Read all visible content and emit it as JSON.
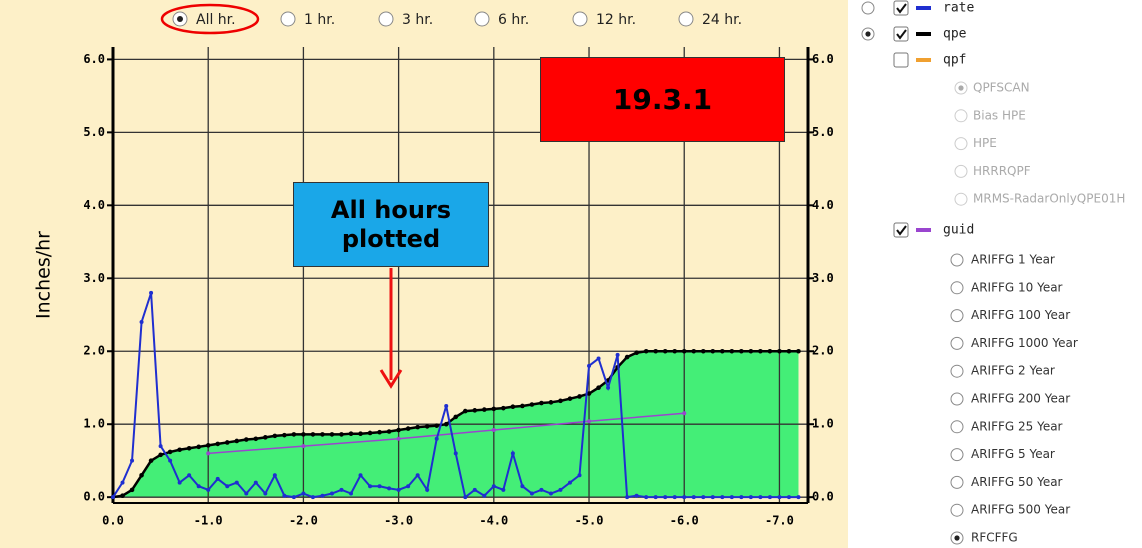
{
  "radio_options": [
    {
      "label": "All hr.",
      "selected": true
    },
    {
      "label": "1 hr.",
      "selected": false
    },
    {
      "label": "3 hr.",
      "selected": false
    },
    {
      "label": "6 hr.",
      "selected": false
    },
    {
      "label": "12 hr.",
      "selected": false
    },
    {
      "label": "24 hr.",
      "selected": false
    }
  ],
  "chart_data": {
    "type": "line",
    "ylabel": "Inches/hr",
    "background": "#fdf0c8",
    "grid": true,
    "xlim": [
      0,
      -7.3
    ],
    "ylim": [
      -0.08,
      6.17
    ],
    "y2lim": [
      -0.08,
      6.17
    ],
    "xticks": [
      {
        "value": 0,
        "label": "0.0"
      },
      {
        "value": -1,
        "label": "-1.0"
      },
      {
        "value": -2,
        "label": "-2.0"
      },
      {
        "value": -3,
        "label": "-3.0"
      },
      {
        "value": -4,
        "label": "-4.0"
      },
      {
        "value": -5,
        "label": "-5.0"
      },
      {
        "value": -6,
        "label": "-6.0"
      },
      {
        "value": -7,
        "label": "-7.0"
      }
    ],
    "yticks": [
      {
        "value": 0,
        "label": "0.0"
      },
      {
        "value": 1,
        "label": "1.0"
      },
      {
        "value": 2,
        "label": "2.0"
      },
      {
        "value": 3,
        "label": "3.0"
      },
      {
        "value": 4,
        "label": "4.0"
      },
      {
        "value": 5,
        "label": "5.0"
      },
      {
        "value": 6,
        "label": "6.0"
      }
    ],
    "y2ticks": [
      {
        "value": 0,
        "label": "0.0"
      },
      {
        "value": 1,
        "label": "1.0"
      },
      {
        "value": 2,
        "label": "2.0"
      },
      {
        "value": 3,
        "label": "3.0"
      },
      {
        "value": 4,
        "label": "4.0"
      },
      {
        "value": 5,
        "label": "5.0"
      },
      {
        "value": 6,
        "label": "6.0"
      }
    ],
    "series": [
      {
        "name": "qpe",
        "color": "#000000",
        "fill": "#44ee77",
        "checked": true,
        "radio_selected": true,
        "x": [
          0,
          -0.1,
          -0.2,
          -0.3,
          -0.4,
          -0.5,
          -0.6,
          -0.7,
          -0.8,
          -0.9,
          -1,
          -1.1,
          -1.2,
          -1.3,
          -1.4,
          -1.5,
          -1.6,
          -1.7,
          -1.8,
          -1.9,
          -2,
          -2.1,
          -2.2,
          -2.3,
          -2.4,
          -2.5,
          -2.6,
          -2.7,
          -2.8,
          -2.9,
          -3,
          -3.1,
          -3.2,
          -3.3,
          -3.4,
          -3.5,
          -3.6,
          -3.7,
          -3.8,
          -3.9,
          -4,
          -4.1,
          -4.2,
          -4.3,
          -4.4,
          -4.5,
          -4.6,
          -4.7,
          -4.8,
          -4.9,
          -5,
          -5.1,
          -5.2,
          -5.3,
          -5.4,
          -5.5,
          -5.6,
          -5.7,
          -5.8,
          -5.9,
          -6,
          -6.1,
          -6.2,
          -6.3,
          -6.4,
          -6.5,
          -6.6,
          -6.7,
          -6.8,
          -6.9,
          -7,
          -7.1,
          -7.2
        ],
        "values": [
          0,
          0.02,
          0.1,
          0.3,
          0.5,
          0.58,
          0.62,
          0.65,
          0.67,
          0.69,
          0.71,
          0.73,
          0.75,
          0.77,
          0.79,
          0.8,
          0.82,
          0.84,
          0.85,
          0.86,
          0.86,
          0.86,
          0.86,
          0.86,
          0.86,
          0.87,
          0.87,
          0.88,
          0.89,
          0.9,
          0.92,
          0.94,
          0.96,
          0.97,
          0.98,
          1.0,
          1.1,
          1.18,
          1.19,
          1.2,
          1.21,
          1.22,
          1.24,
          1.25,
          1.27,
          1.29,
          1.3,
          1.32,
          1.35,
          1.38,
          1.42,
          1.5,
          1.6,
          1.78,
          1.92,
          1.98,
          2,
          2,
          2,
          2,
          2,
          2,
          2,
          2,
          2,
          2,
          2,
          2,
          2,
          2,
          2,
          2,
          2
        ]
      },
      {
        "name": "rate",
        "color": "#1f2fd0",
        "checked": true,
        "radio_selected": false,
        "x": [
          0,
          -0.1,
          -0.2,
          -0.3,
          -0.4,
          -0.5,
          -0.6,
          -0.7,
          -0.8,
          -0.9,
          -1,
          -1.1,
          -1.2,
          -1.3,
          -1.4,
          -1.5,
          -1.6,
          -1.7,
          -1.8,
          -1.9,
          -2,
          -2.1,
          -2.2,
          -2.3,
          -2.4,
          -2.5,
          -2.6,
          -2.7,
          -2.8,
          -2.9,
          -3,
          -3.1,
          -3.2,
          -3.3,
          -3.4,
          -3.5,
          -3.6,
          -3.7,
          -3.8,
          -3.9,
          -4,
          -4.1,
          -4.2,
          -4.3,
          -4.4,
          -4.5,
          -4.6,
          -4.7,
          -4.8,
          -4.9,
          -5,
          -5.1,
          -5.2,
          -5.3,
          -5.4,
          -5.5,
          -5.6,
          -5.7,
          -5.8,
          -5.9,
          -6,
          -6.1,
          -6.2,
          -6.3,
          -6.4,
          -6.5,
          -6.6,
          -6.7,
          -6.8,
          -6.9,
          -7,
          -7.1,
          -7.2
        ],
        "values": [
          0,
          0.2,
          0.5,
          2.4,
          2.8,
          0.7,
          0.5,
          0.2,
          0.3,
          0.15,
          0.1,
          0.25,
          0.15,
          0.2,
          0.05,
          0.2,
          0.05,
          0.3,
          0.02,
          0,
          0.05,
          0,
          0.02,
          0.05,
          0.1,
          0.05,
          0.3,
          0.15,
          0.15,
          0.12,
          0.1,
          0.15,
          0.3,
          0.1,
          0.8,
          1.25,
          0.6,
          0,
          0.1,
          0.02,
          0.15,
          0.1,
          0.6,
          0.15,
          0.05,
          0.1,
          0.05,
          0.1,
          0.2,
          0.3,
          1.8,
          1.9,
          1.5,
          1.95,
          0,
          0.02,
          0,
          0,
          0,
          0,
          0,
          0,
          0,
          0,
          0,
          0,
          0,
          0,
          0,
          0,
          0,
          0,
          0
        ]
      },
      {
        "name": "guid",
        "color": "#9a45cf",
        "checked": true,
        "x": [
          -1,
          -2,
          -3,
          -4,
          -5,
          -6
        ],
        "values": [
          0.6,
          0.7,
          0.8,
          0.92,
          1.04,
          1.15
        ]
      }
    ],
    "annotations": [
      {
        "text": "19.3.1",
        "color": "#ff0000",
        "text_color": "#000000"
      },
      {
        "text": "All hours plotted",
        "color": "#1aa7e8",
        "text_color": "#000000",
        "arrow_color": "#ee1111"
      }
    ]
  },
  "panel": {
    "qpf": {
      "name": "qpf",
      "color": "#f0a030",
      "checked": false
    },
    "qpf_sources": [
      {
        "label": "QPFSCAN",
        "selected": true
      },
      {
        "label": "Bias HPE",
        "selected": false
      },
      {
        "label": "HPE",
        "selected": false
      },
      {
        "label": "HRRRQPF",
        "selected": false
      },
      {
        "label": "MRMS-RadarOnlyQPE01H",
        "selected": false
      }
    ],
    "guid_options": [
      {
        "label": "ARIFFG 1 Year",
        "selected": false
      },
      {
        "label": "ARIFFG 10 Year",
        "selected": false
      },
      {
        "label": "ARIFFG 100 Year",
        "selected": false
      },
      {
        "label": "ARIFFG 1000 Year",
        "selected": false
      },
      {
        "label": "ARIFFG 2 Year",
        "selected": false
      },
      {
        "label": "ARIFFG 200 Year",
        "selected": false
      },
      {
        "label": "ARIFFG 25 Year",
        "selected": false
      },
      {
        "label": "ARIFFG 5 Year",
        "selected": false
      },
      {
        "label": "ARIFFG 50 Year",
        "selected": false
      },
      {
        "label": "ARIFFG 500 Year",
        "selected": false
      },
      {
        "label": "RFCFFG",
        "selected": true
      }
    ]
  }
}
